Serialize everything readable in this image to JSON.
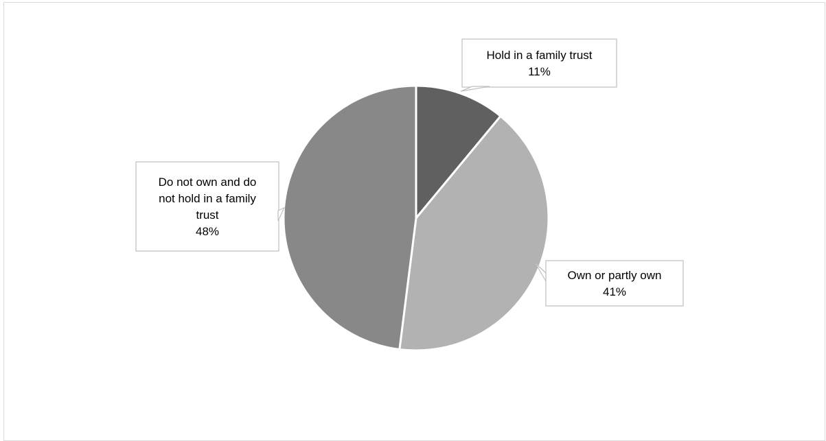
{
  "chart_data": {
    "type": "pie",
    "title": "",
    "start_angle_deg": 0,
    "direction": "clockwise",
    "slices": [
      {
        "label_lines": [
          "Hold in a family trust"
        ],
        "percent_label": "11%",
        "value": 11,
        "color": "#606060"
      },
      {
        "label_lines": [
          "Own or partly own"
        ],
        "percent_label": "41%",
        "value": 41,
        "color": "#b2b2b2"
      },
      {
        "label_lines": [
          "Do not own and do",
          "not hold in a family",
          "trust"
        ],
        "percent_label": "48%",
        "value": 48,
        "color": "#888888"
      }
    ],
    "slice_border_color": "#ffffff",
    "callout_border_color": "#bfbfbf"
  }
}
